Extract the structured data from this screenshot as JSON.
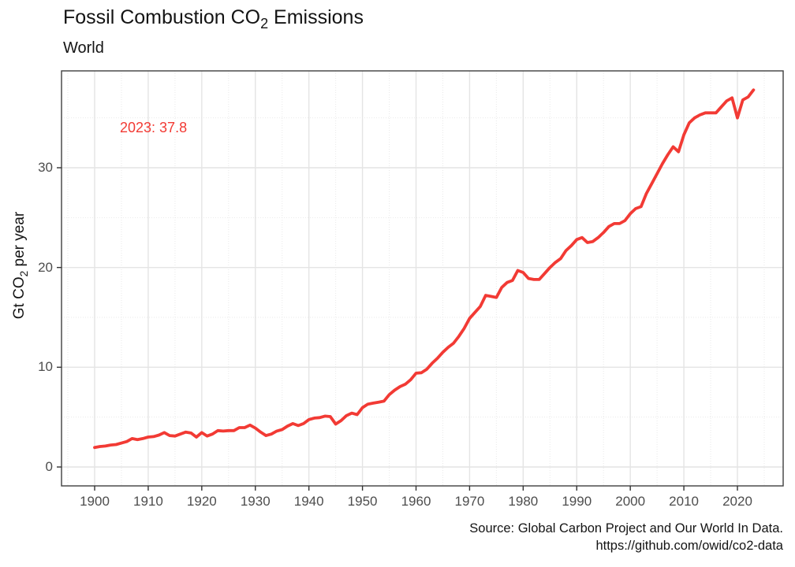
{
  "header": {
    "title_pre": "Fossil Combustion CO",
    "title_sub": "2",
    "title_post": " Emissions",
    "subtitle": "World"
  },
  "y_axis": {
    "label_pre": "Gt CO",
    "label_sub": "2",
    "label_post": " per year",
    "tick_labels": [
      "0",
      "10",
      "20",
      "30"
    ]
  },
  "x_axis": {
    "tick_labels": [
      "1900",
      "1910",
      "1920",
      "1930",
      "1940",
      "1950",
      "1960",
      "1970",
      "1980",
      "1990",
      "2000",
      "2010",
      "2020"
    ]
  },
  "annotation": {
    "text": "2023: 37.8",
    "color": "#f23a34"
  },
  "caption": {
    "line1": "Source: Global Carbon Project and Our World In Data.",
    "line2": "https://github.com/owid/co2-data"
  },
  "colors": {
    "line": "#f23a34",
    "grid_major": "#e4e4e4",
    "grid_minor": "#e9e9e9",
    "panel_border": "#3f3f3f",
    "tick_mark": "#333333",
    "tick_text": "#4d4d4d"
  },
  "chart_data": {
    "type": "line",
    "title": "Fossil Combustion CO2 Emissions",
    "subtitle": "World",
    "xlabel": "",
    "ylabel": "Gt CO2 per year",
    "series_name": "World fossil CO2 emissions (Gt CO2 per year)",
    "annotation": "2023: 37.8",
    "legend": "none",
    "grid": "on",
    "x_ticks": [
      1900,
      1910,
      1920,
      1930,
      1940,
      1950,
      1960,
      1970,
      1980,
      1990,
      2000,
      2010,
      2020
    ],
    "x_minor_ticks": [
      1895,
      1905,
      1915,
      1925,
      1935,
      1945,
      1955,
      1965,
      1975,
      1985,
      1995,
      2005,
      2015,
      2025
    ],
    "y_ticks": [
      0,
      10,
      20,
      30
    ],
    "y_minor_ticks": [
      5,
      15,
      25,
      35
    ],
    "xlim": [
      1893.8,
      2028.6
    ],
    "ylim": [
      -1.9,
      39.7
    ],
    "x": [
      1900,
      1901,
      1902,
      1903,
      1904,
      1905,
      1906,
      1907,
      1908,
      1909,
      1910,
      1911,
      1912,
      1913,
      1914,
      1915,
      1916,
      1917,
      1918,
      1919,
      1920,
      1921,
      1922,
      1923,
      1924,
      1925,
      1926,
      1927,
      1928,
      1929,
      1930,
      1931,
      1932,
      1933,
      1934,
      1935,
      1936,
      1937,
      1938,
      1939,
      1940,
      1941,
      1942,
      1943,
      1944,
      1945,
      1946,
      1947,
      1948,
      1949,
      1950,
      1951,
      1952,
      1953,
      1954,
      1955,
      1956,
      1957,
      1958,
      1959,
      1960,
      1961,
      1962,
      1963,
      1964,
      1965,
      1966,
      1967,
      1968,
      1969,
      1970,
      1971,
      1972,
      1973,
      1974,
      1975,
      1976,
      1977,
      1978,
      1979,
      1980,
      1981,
      1982,
      1983,
      1984,
      1985,
      1986,
      1987,
      1988,
      1989,
      1990,
      1991,
      1992,
      1993,
      1994,
      1995,
      1996,
      1997,
      1998,
      1999,
      2000,
      2001,
      2002,
      2003,
      2004,
      2005,
      2006,
      2007,
      2008,
      2009,
      2010,
      2011,
      2012,
      2013,
      2014,
      2015,
      2016,
      2017,
      2018,
      2019,
      2020,
      2021,
      2022,
      2023
    ],
    "values": [
      1.95,
      2.05,
      2.1,
      2.2,
      2.25,
      2.4,
      2.55,
      2.85,
      2.75,
      2.85,
      3.0,
      3.05,
      3.2,
      3.45,
      3.15,
      3.1,
      3.3,
      3.5,
      3.4,
      3.0,
      3.45,
      3.1,
      3.3,
      3.65,
      3.6,
      3.65,
      3.65,
      3.95,
      3.95,
      4.2,
      3.9,
      3.5,
      3.15,
      3.3,
      3.6,
      3.75,
      4.1,
      4.35,
      4.15,
      4.35,
      4.75,
      4.9,
      4.95,
      5.1,
      5.05,
      4.3,
      4.65,
      5.15,
      5.4,
      5.25,
      5.95,
      6.3,
      6.4,
      6.5,
      6.6,
      7.25,
      7.7,
      8.05,
      8.3,
      8.75,
      9.4,
      9.45,
      9.8,
      10.4,
      10.9,
      11.5,
      12.0,
      12.4,
      13.1,
      13.9,
      14.9,
      15.5,
      16.1,
      17.2,
      17.1,
      17.0,
      18.0,
      18.5,
      18.7,
      19.7,
      19.5,
      18.9,
      18.8,
      18.8,
      19.4,
      20.0,
      20.5,
      20.9,
      21.7,
      22.2,
      22.8,
      23.0,
      22.5,
      22.6,
      23.0,
      23.5,
      24.1,
      24.4,
      24.4,
      24.7,
      25.4,
      25.9,
      26.1,
      27.4,
      28.4,
      29.4,
      30.4,
      31.3,
      32.1,
      31.6,
      33.3,
      34.5,
      35.0,
      35.3,
      35.5,
      35.5,
      35.5,
      36.1,
      36.7,
      37.0,
      35.0,
      36.8,
      37.1,
      37.8
    ]
  }
}
